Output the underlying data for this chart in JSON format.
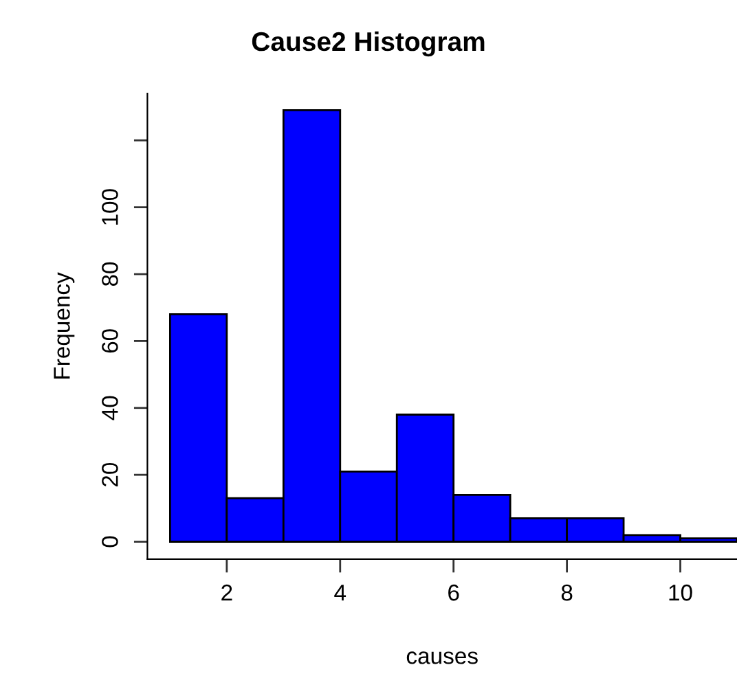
{
  "chart_data": {
    "type": "histogram",
    "title": "Cause2 Histogram",
    "xlabel": "causes",
    "ylabel": "Frequency",
    "bins": [
      1,
      2,
      3,
      4,
      5,
      6,
      7,
      8,
      9,
      10,
      11
    ],
    "values": [
      68,
      13,
      129,
      21,
      38,
      14,
      7,
      7,
      2,
      1
    ],
    "color": "#0000ff",
    "xlim": [
      0.6,
      11
    ],
    "ylim": [
      -5.2,
      134
    ],
    "xticks": [
      2,
      4,
      6,
      8,
      10
    ],
    "yticks": [
      0,
      20,
      40,
      60,
      80,
      100,
      {
        "value": 120,
        "label": null
      }
    ]
  }
}
